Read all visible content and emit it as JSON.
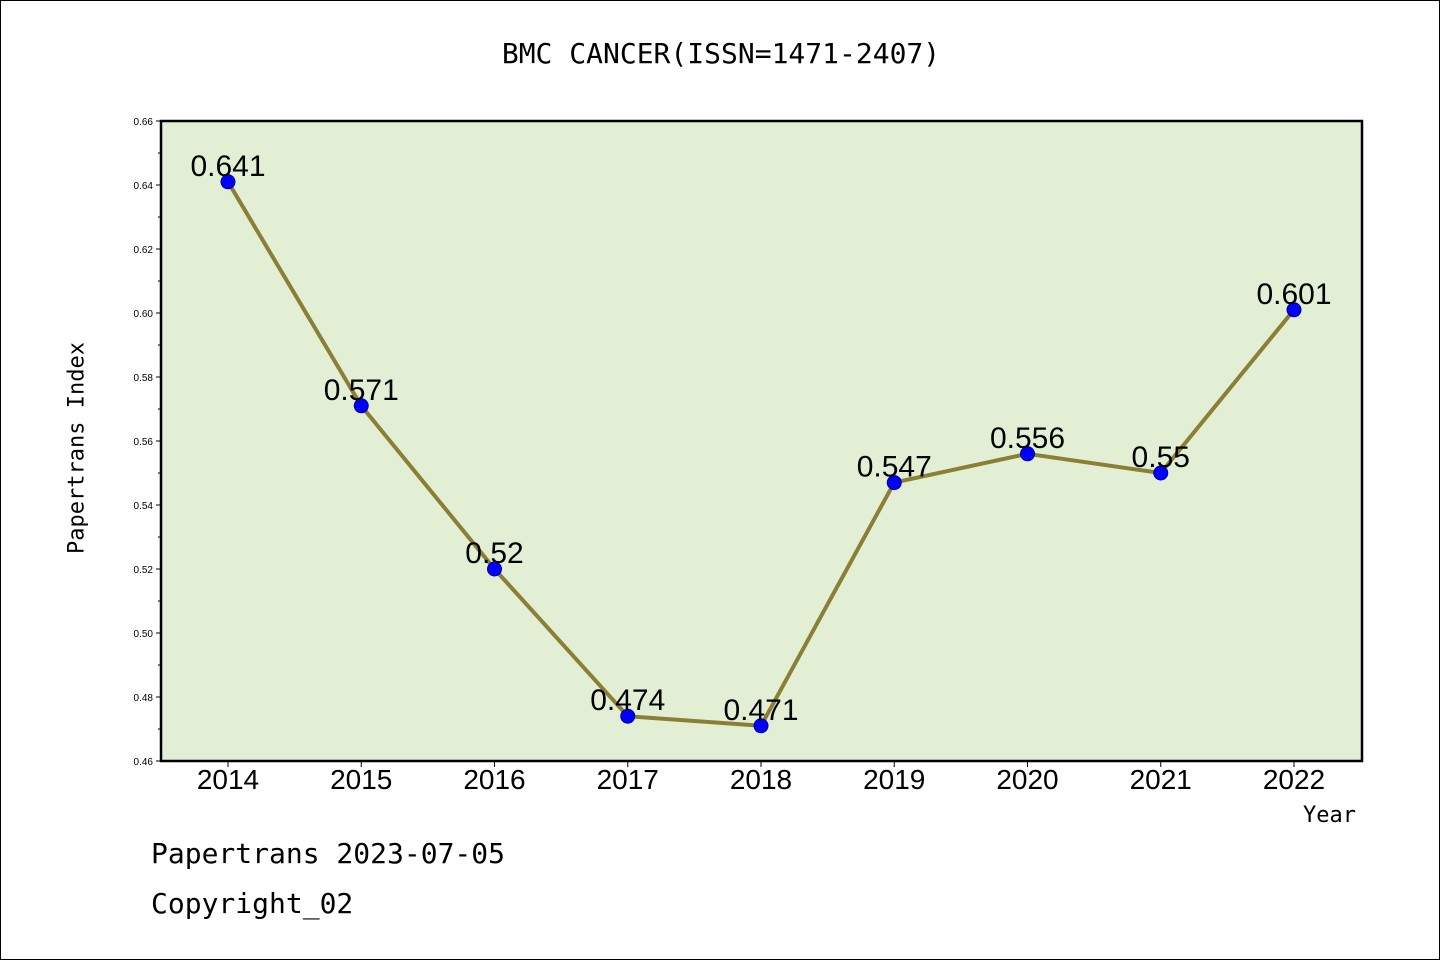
{
  "title": "BMC CANCER(ISSN=1471-2407)",
  "footer": {
    "line1": "Papertrans 2023-07-05",
    "line2": "Copyright_02"
  },
  "chart_data": {
    "type": "line",
    "title": "BMC CANCER(ISSN=1471-2407)",
    "xlabel": "Year",
    "ylabel": "Papertrans Index",
    "categories": [
      "2014",
      "2015",
      "2016",
      "2017",
      "2018",
      "2019",
      "2020",
      "2021",
      "2022"
    ],
    "series": [
      {
        "values": [
          0.641,
          0.571,
          0.52,
          0.474,
          0.471,
          0.547,
          0.556,
          0.55,
          0.601
        ],
        "labels": [
          "0.641",
          "0.571",
          "0.52",
          "0.474",
          "0.471",
          "0.547",
          "0.556",
          "0.55",
          "0.601"
        ]
      }
    ],
    "ylim": [
      0.46,
      0.66
    ],
    "yticks": [
      "0.46",
      "0.48",
      "0.50",
      "0.52",
      "0.54",
      "0.56",
      "0.58",
      "0.60",
      "0.62",
      "0.64",
      "0.66"
    ],
    "grid": false,
    "colors": {
      "plot_background": "#e2efd5",
      "line": "#8b7f35",
      "marker": "#0000ff",
      "marker_edge": "#00008b"
    }
  }
}
